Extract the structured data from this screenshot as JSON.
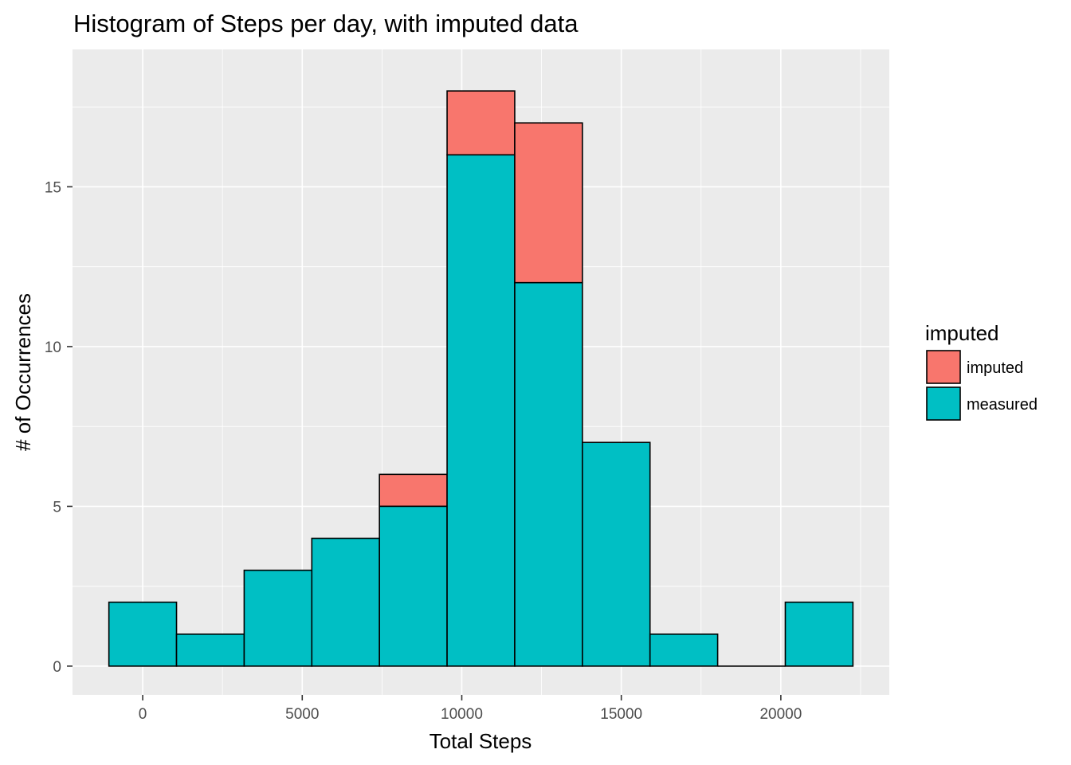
{
  "chart_data": {
    "type": "bar",
    "stacked": true,
    "title": "Histogram of Steps per day, with imputed data",
    "xlabel": "Total Steps",
    "ylabel": "# of Occurrences",
    "xlim": [
      -2200,
      23400
    ],
    "ylim": [
      -0.9,
      19.3
    ],
    "xticks": [
      0,
      5000,
      10000,
      15000,
      20000
    ],
    "xtick_labels": [
      "0",
      "5000",
      "10000",
      "15000",
      "20000"
    ],
    "yticks": [
      0,
      5,
      10,
      15
    ],
    "ytick_labels": [
      "0",
      "5",
      "10",
      "15"
    ],
    "grid": true,
    "legend_position": "right",
    "legend_title": "imputed",
    "bin_width": 2120,
    "bins": [
      {
        "x0": -1060,
        "x1": 1060
      },
      {
        "x0": 1060,
        "x1": 3180
      },
      {
        "x0": 3180,
        "x1": 5300
      },
      {
        "x0": 5300,
        "x1": 7420
      },
      {
        "x0": 7420,
        "x1": 9540
      },
      {
        "x0": 9540,
        "x1": 11660
      },
      {
        "x0": 11660,
        "x1": 13780
      },
      {
        "x0": 13780,
        "x1": 15900
      },
      {
        "x0": 15900,
        "x1": 18020
      },
      {
        "x0": 18020,
        "x1": 20140
      },
      {
        "x0": 20140,
        "x1": 22260
      }
    ],
    "series": [
      {
        "name": "measured",
        "color": "#00BFC4",
        "values": [
          2,
          1,
          3,
          4,
          5,
          16,
          12,
          7,
          1,
          0,
          2
        ]
      },
      {
        "name": "imputed",
        "color": "#F8766D",
        "values": [
          0,
          0,
          0,
          0,
          1,
          2,
          5,
          0,
          0,
          0,
          0
        ]
      }
    ],
    "legend": [
      {
        "label": "imputed",
        "color": "#F8766D"
      },
      {
        "label": "measured",
        "color": "#00BFC4"
      }
    ]
  }
}
